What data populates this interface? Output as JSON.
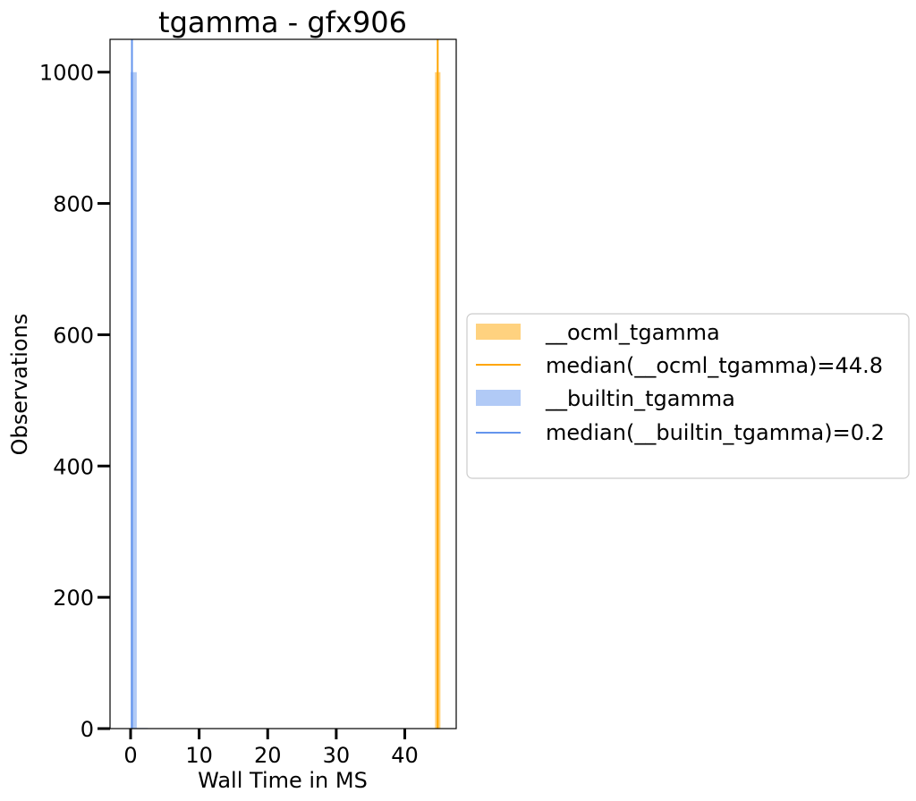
{
  "chart_data": {
    "type": "histogram",
    "title": "tgamma - gfx906",
    "xlabel": "Wall Time in MS",
    "ylabel": "Observations",
    "xlim": [
      -3,
      47.5
    ],
    "ylim": [
      0,
      1050
    ],
    "xticks": [
      0,
      10,
      20,
      30,
      40
    ],
    "yticks": [
      0,
      200,
      400,
      600,
      800,
      1000
    ],
    "grid": false,
    "legend_position": "outside-right",
    "series": [
      {
        "name": "__ocml_tgamma",
        "kind": "histogram",
        "color": "#ffa500",
        "opacity": 0.5,
        "bins": [
          {
            "x0": 44.4,
            "x1": 45.2,
            "count": 1000
          }
        ],
        "median": 44.8,
        "median_label": "median(__ocml_tgamma)=44.8"
      },
      {
        "name": "__builtin_tgamma",
        "kind": "histogram",
        "color": "#6495ed",
        "opacity": 0.5,
        "bins": [
          {
            "x0": 0.0,
            "x1": 0.9,
            "count": 1000
          },
          {
            "x0": 0.9,
            "x1": 2.5,
            "count": 1
          }
        ],
        "median": 0.2,
        "median_label": "median(__builtin_tgamma)=0.2"
      }
    ]
  }
}
